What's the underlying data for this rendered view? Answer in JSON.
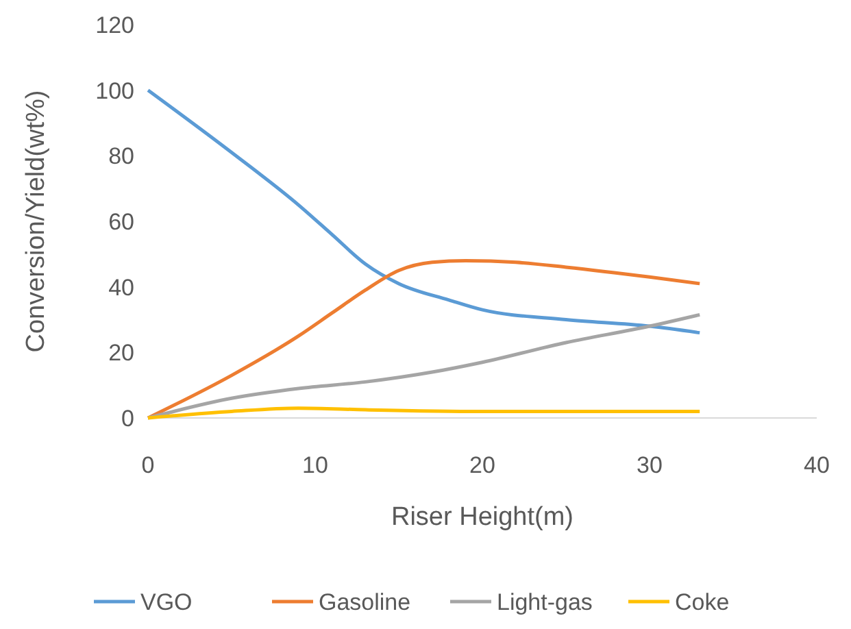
{
  "chart_data": {
    "type": "line",
    "xlabel": "Riser Height(m)",
    "ylabel": "Conversion/Yield(wt%)",
    "xlim": [
      0,
      40
    ],
    "xticks": [
      0,
      10,
      20,
      30,
      40
    ],
    "ylim": [
      0,
      120
    ],
    "yticks": [
      0,
      20,
      40,
      60,
      80,
      100,
      120
    ],
    "grid": false,
    "legend": "bottom",
    "marker": "none",
    "line_style": "solid",
    "series": [
      {
        "name": "VGO",
        "color": "#5b9bd5",
        "x": [
          0,
          5,
          9,
          11,
          13,
          15,
          18,
          20,
          25,
          30,
          33
        ],
        "values": [
          100,
          81,
          65,
          56,
          47,
          41,
          36,
          33,
          30,
          28,
          26
        ]
      },
      {
        "name": "Gasoline",
        "color": "#ed7d31",
        "x": [
          0,
          5,
          9,
          11,
          13,
          15,
          17,
          19,
          22,
          25,
          30,
          33
        ],
        "values": [
          0,
          13,
          25,
          32,
          39,
          45,
          47.5,
          48,
          47.5,
          46,
          43,
          41
        ]
      },
      {
        "name": "Light-gas",
        "color": "#a5a5a5",
        "x": [
          0,
          5,
          9,
          13,
          17,
          20,
          25,
          30,
          33
        ],
        "values": [
          0,
          6,
          9,
          11,
          14,
          17,
          23,
          28,
          31.5
        ]
      },
      {
        "name": "Coke",
        "color": "#ffc000",
        "x": [
          0,
          5,
          9,
          13,
          20,
          33
        ],
        "values": [
          0,
          2,
          3,
          2.5,
          2,
          2
        ]
      }
    ]
  }
}
